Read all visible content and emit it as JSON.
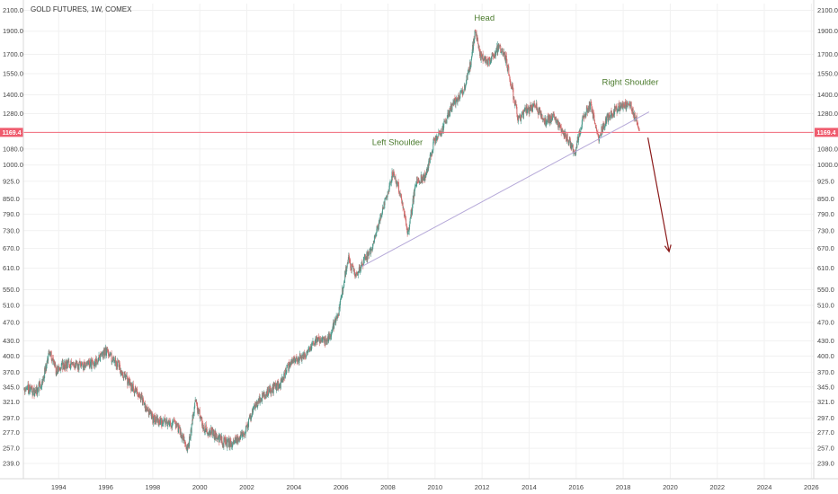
{
  "chart_data": {
    "type": "candlestick",
    "title": "GOLD FUTURES, 1W, COMEX",
    "y_scale": "log",
    "ylim": [
      225,
      2150
    ],
    "xlim": [
      1992.5,
      2026.1
    ],
    "y_ticks": [
      239.0,
      257.0,
      277.0,
      297.0,
      321.0,
      345.0,
      370.0,
      400.0,
      430.0,
      470.0,
      510.0,
      550.0,
      610.0,
      670.0,
      730.0,
      790.0,
      850.0,
      925.0,
      1000.0,
      1080.0,
      1169.4,
      1280.0,
      1400.0,
      1550.0,
      1700.0,
      1900.0,
      2100.0
    ],
    "y_tick_labels": [
      "239.0",
      "257.0",
      "277.0",
      "297.0",
      "321.0",
      "345.0",
      "370.0",
      "400.0",
      "430.0",
      "470.0",
      "510.0",
      "550.0",
      "610.0",
      "670.0",
      "730.0",
      "790.0",
      "850.0",
      "925.0",
      "1000.0",
      "1080.0",
      "1169.4",
      "1280.0",
      "1400.0",
      "1550.0",
      "1700.0",
      "1900.0",
      "2100.0"
    ],
    "x_ticks": [
      1994,
      1996,
      1998,
      2000,
      2002,
      2004,
      2006,
      2008,
      2010,
      2012,
      2014,
      2016,
      2018,
      2020,
      2022,
      2024,
      2026
    ],
    "x_tick_labels": [
      "1994",
      "1996",
      "1998",
      "2000",
      "2002",
      "2004",
      "2006",
      "2008",
      "2010",
      "2012",
      "2014",
      "2016",
      "2018",
      "2020",
      "2022",
      "2024",
      "2026"
    ],
    "current_price": 1169.4,
    "current_price_label": "1169.4",
    "price_path": [
      [
        1992.5,
        345
      ],
      [
        1993.0,
        336
      ],
      [
        1993.3,
        352
      ],
      [
        1993.6,
        408
      ],
      [
        1993.9,
        372
      ],
      [
        1994.2,
        382
      ],
      [
        1994.6,
        386
      ],
      [
        1995.0,
        382
      ],
      [
        1995.5,
        386
      ],
      [
        1996.0,
        410
      ],
      [
        1996.5,
        385
      ],
      [
        1997.0,
        350
      ],
      [
        1997.5,
        330
      ],
      [
        1998.0,
        295
      ],
      [
        1998.5,
        292
      ],
      [
        1999.0,
        288
      ],
      [
        1999.5,
        256
      ],
      [
        1999.8,
        320
      ],
      [
        2000.2,
        282
      ],
      [
        2000.6,
        276
      ],
      [
        2001.0,
        265
      ],
      [
        2001.4,
        262
      ],
      [
        2001.9,
        278
      ],
      [
        2002.4,
        318
      ],
      [
        2002.9,
        338
      ],
      [
        2003.4,
        348
      ],
      [
        2003.9,
        392
      ],
      [
        2004.4,
        398
      ],
      [
        2004.9,
        432
      ],
      [
        2005.4,
        428
      ],
      [
        2005.9,
        490
      ],
      [
        2006.3,
        640
      ],
      [
        2006.6,
        590
      ],
      [
        2006.9,
        625
      ],
      [
        2007.3,
        665
      ],
      [
        2007.7,
        780
      ],
      [
        2008.2,
        960
      ],
      [
        2008.5,
        880
      ],
      [
        2008.85,
        720
      ],
      [
        2009.2,
        925
      ],
      [
        2009.6,
        950
      ],
      [
        2009.95,
        1120
      ],
      [
        2010.3,
        1180
      ],
      [
        2010.8,
        1360
      ],
      [
        2011.2,
        1420
      ],
      [
        2011.5,
        1620
      ],
      [
        2011.7,
        1890
      ],
      [
        2011.95,
        1680
      ],
      [
        2012.3,
        1640
      ],
      [
        2012.7,
        1760
      ],
      [
        2013.0,
        1670
      ],
      [
        2013.3,
        1420
      ],
      [
        2013.55,
        1240
      ],
      [
        2013.9,
        1300
      ],
      [
        2014.3,
        1320
      ],
      [
        2014.7,
        1230
      ],
      [
        2015.0,
        1260
      ],
      [
        2015.5,
        1160
      ],
      [
        2015.95,
        1065
      ],
      [
        2016.3,
        1260
      ],
      [
        2016.6,
        1340
      ],
      [
        2016.95,
        1140
      ],
      [
        2017.3,
        1250
      ],
      [
        2017.7,
        1310
      ],
      [
        2018.0,
        1340
      ],
      [
        2018.3,
        1330
      ],
      [
        2018.55,
        1240
      ],
      [
        2018.7,
        1190
      ]
    ],
    "neckline": {
      "from": [
        2006.9,
        615
      ],
      "to": [
        2019.1,
        1290
      ]
    },
    "horizontal_line": 1169.4,
    "forecast_arrow": {
      "from": [
        2019.05,
        1140
      ],
      "to": [
        2019.95,
        660
      ]
    },
    "annotations": [
      {
        "text": "Head",
        "x": 2012.1,
        "y": 2000
      },
      {
        "text": "Left Shoulder",
        "x": 2008.4,
        "y": 1100
      },
      {
        "text": "Right Shoulder",
        "x": 2018.3,
        "y": 1470
      }
    ],
    "colors": {
      "up": "#4c9a8c",
      "down": "#d36a6a",
      "neckline": "#b5a8d8",
      "price_line": "#f06a7a",
      "price_tag": "#ef5c6e",
      "arrow": "#8b1a1a",
      "grid": "#f1f1f1",
      "annotation": "#4a7a2c"
    },
    "grid": true
  }
}
